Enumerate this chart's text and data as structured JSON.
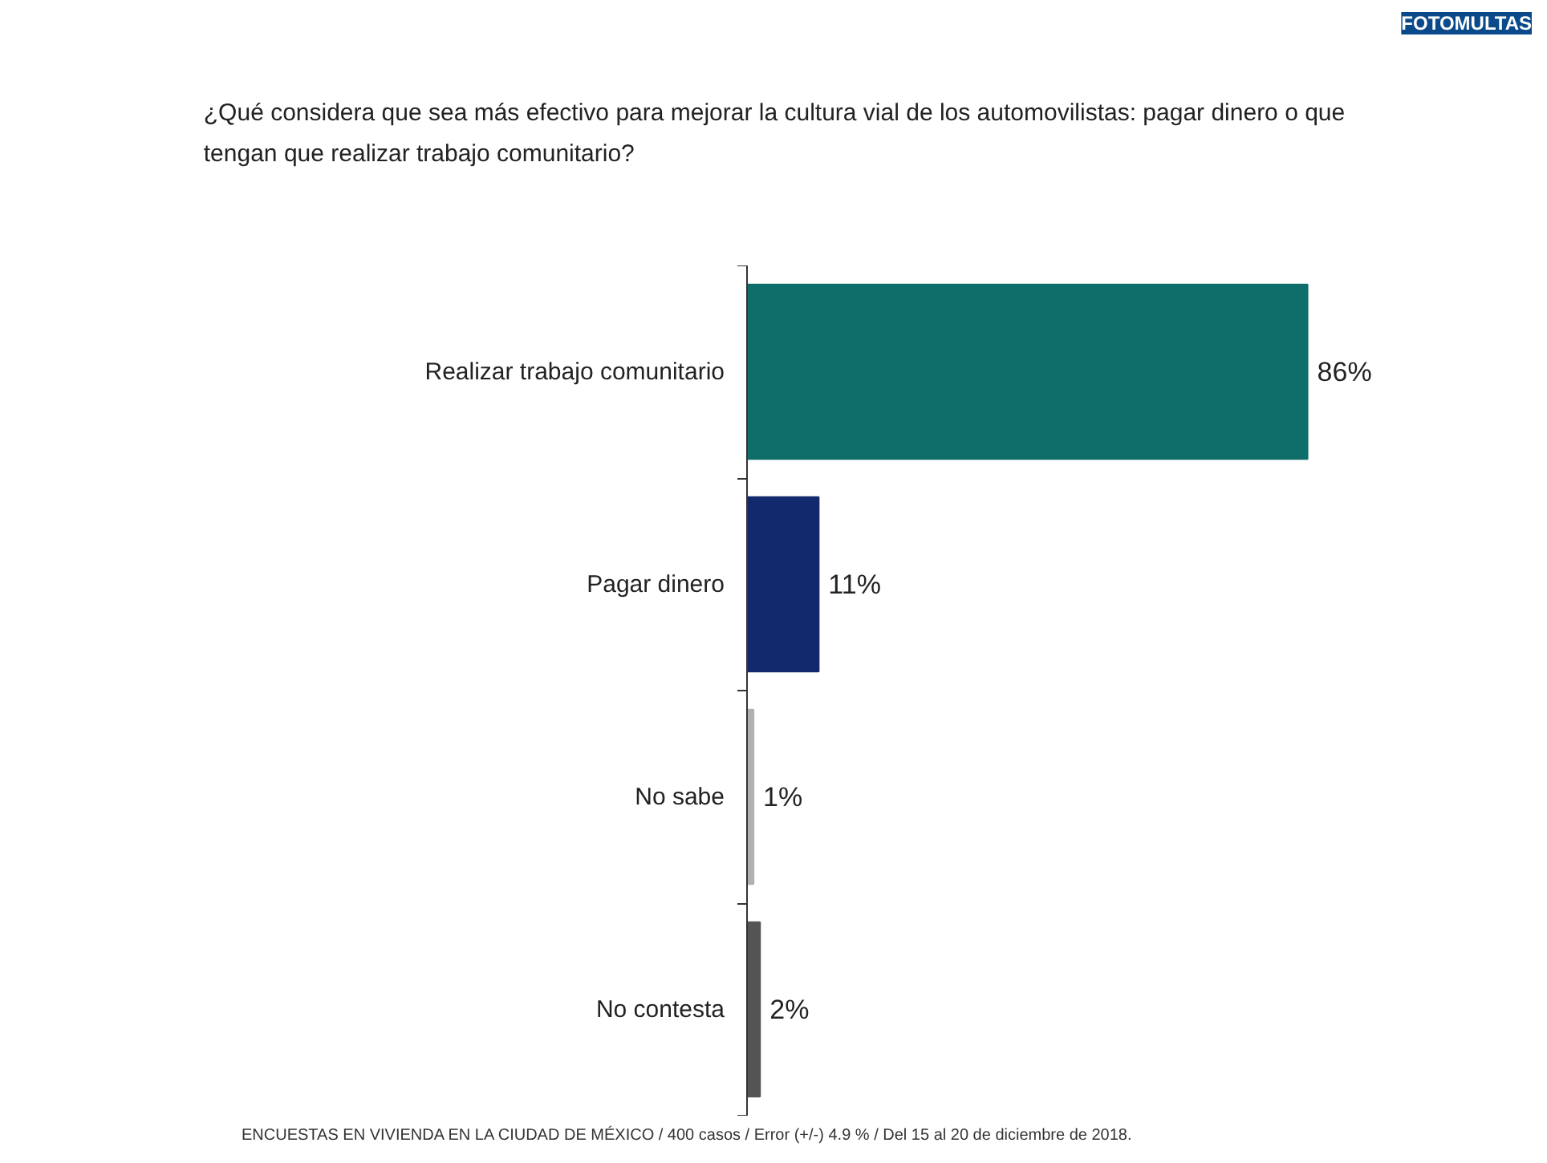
{
  "chart_data": {
    "type": "bar",
    "orientation": "horizontal",
    "title": "¿Qué considera que sea más efectivo para mejorar la cultura vial de los automovilistas: pagar dinero o que tengan que realizar trabajo comunitario?",
    "subtitle": "FOTOMULTAS",
    "categories": [
      "Realizar trabajo comunitario",
      "Pagar dinero",
      "No sabe",
      "No contesta"
    ],
    "values": [
      86,
      11,
      1,
      2
    ],
    "value_labels": [
      "86%",
      "11%",
      "1%",
      "2%"
    ],
    "colors": [
      "#0e6e6a",
      "#13296e",
      "#b0b0b0",
      "#555555"
    ],
    "tick_labels": "y",
    "grid": false,
    "annotations": [
      "ENCUESTAS EN VIVIENDA EN LA CIUDAD DE MÉXICO / 400 casos / Error (+/-) 4.9 % / Del 15 al 20 de diciembre de 2018."
    ]
  }
}
